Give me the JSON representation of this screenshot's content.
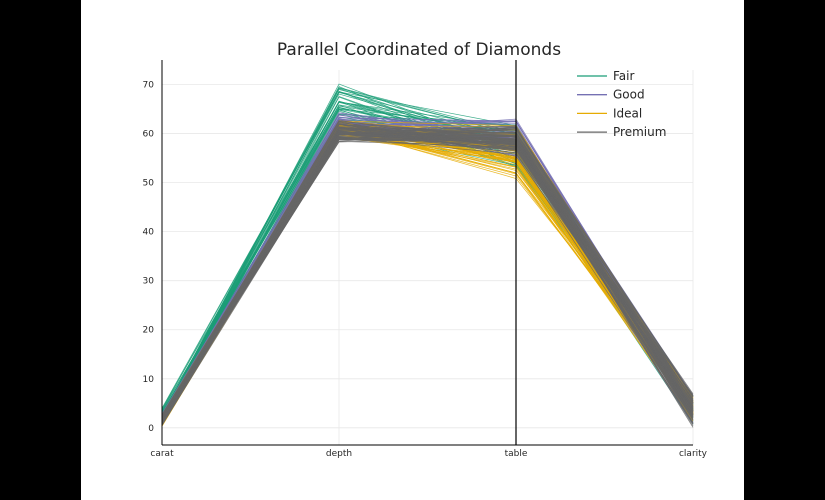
{
  "chart_data": {
    "type": "parallel_coordinates",
    "title": "Parallel Coordinated of Diamonds",
    "axes": [
      "carat",
      "depth",
      "table",
      "clarity"
    ],
    "highlighted_axis": "table",
    "ylim": [
      -3.5,
      75
    ],
    "yticks": [
      0,
      10,
      20,
      30,
      40,
      50,
      60,
      70
    ],
    "ytick_labels": [
      "0",
      "10",
      "20",
      "30",
      "40",
      "50",
      "60",
      "70"
    ],
    "grid": true,
    "legend_position": "top-right",
    "series": [
      {
        "name": "Fair",
        "color": "#1b9e77",
        "ranges": {
          "carat": [
            0.2,
            4.5
          ],
          "depth": [
            58.0,
            71.5
          ],
          "table": [
            51.0,
            64.0
          ],
          "clarity": [
            0.0,
            7.0
          ]
        }
      },
      {
        "name": "Good",
        "color": "#7570b3",
        "ranges": {
          "carat": [
            0.2,
            3.0
          ],
          "depth": [
            60.0,
            64.5
          ],
          "table": [
            54.0,
            64.5
          ],
          "clarity": [
            0.0,
            7.0
          ]
        }
      },
      {
        "name": "Ideal",
        "color": "#e6ab02",
        "ranges": {
          "carat": [
            0.2,
            3.0
          ],
          "depth": [
            59.0,
            63.0
          ],
          "table": [
            50.5,
            62.0
          ],
          "clarity": [
            1.0,
            7.0
          ]
        }
      },
      {
        "name": "Premium",
        "color": "#666666",
        "ranges": {
          "carat": [
            0.2,
            3.0
          ],
          "depth": [
            58.0,
            63.0
          ],
          "table": [
            55.0,
            62.0
          ],
          "clarity": [
            0.0,
            7.5
          ]
        }
      }
    ]
  }
}
